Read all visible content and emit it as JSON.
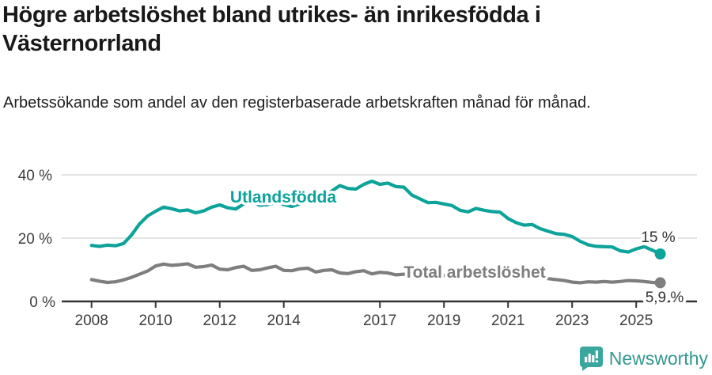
{
  "header": {
    "title": "Högre arbetslöshet bland utrikes- än inrikesfödda i Västernorrland",
    "subtitle": "Arbetssökande som andel av den registerbaserade arbetskraften månad för månad."
  },
  "chart_data": {
    "type": "line",
    "title": "Högre arbetslöshet bland utrikes- än inrikesfödda i Västernorrland",
    "subtitle": "Arbetssökande som andel av den registerbaserade arbetskraften månad för månad.",
    "x_start": 2008,
    "x_step": 0.25,
    "xlim": [
      2008,
      2026
    ],
    "ylim": [
      0,
      43
    ],
    "grid": "horizontal-y",
    "legend_position": "inline-labels",
    "xticks": [
      2008,
      2010,
      2012,
      2014,
      2017,
      2019,
      2021,
      2023,
      2025
    ],
    "xtick_labels": [
      "2008",
      "2010",
      "2012",
      "2014",
      "2017",
      "2019",
      "2021",
      "2023",
      "2025"
    ],
    "ytick_labels": [
      "40 %",
      "20 %",
      "0 %"
    ],
    "yticks": [
      40,
      20,
      0
    ],
    "series": [
      {
        "name": "Utlandsfödda",
        "color": "#0ba39a",
        "end_label": "15 %",
        "end_value": 15,
        "values": [
          17.7,
          17.4,
          17.8,
          17.6,
          18.3,
          21.0,
          24.5,
          27.0,
          28.5,
          29.8,
          29.3,
          28.6,
          28.9,
          28.0,
          28.6,
          29.8,
          30.5,
          29.6,
          29.2,
          30.8,
          31.5,
          30.4,
          30.6,
          31.2,
          30.6,
          30.0,
          30.8,
          31.5,
          32.0,
          33.0,
          34.9,
          36.6,
          35.7,
          35.5,
          37.0,
          38.0,
          37.0,
          37.4,
          36.3,
          36.1,
          33.6,
          32.4,
          31.2,
          31.3,
          30.8,
          30.3,
          28.8,
          28.3,
          29.4,
          28.8,
          28.4,
          28.2,
          26.2,
          24.9,
          24.1,
          24.3,
          23.0,
          22.2,
          21.4,
          21.2,
          20.5,
          19.0,
          17.9,
          17.4,
          17.3,
          17.2,
          16.0,
          15.6,
          16.6,
          17.3,
          16.2,
          15.0
        ]
      },
      {
        "name": "Total arbetslöshet",
        "color": "#7e7e7e",
        "end_label": "5,9 %",
        "end_value": 5.9,
        "values": [
          6.9,
          6.4,
          6.0,
          6.2,
          6.8,
          7.6,
          8.6,
          9.6,
          11.2,
          11.8,
          11.4,
          11.6,
          11.9,
          10.8,
          11.0,
          11.5,
          10.2,
          10.0,
          10.7,
          11.1,
          9.8,
          10.0,
          10.6,
          11.1,
          9.8,
          9.7,
          10.3,
          10.5,
          9.3,
          9.8,
          10.0,
          9.0,
          8.8,
          9.4,
          9.7,
          8.7,
          9.2,
          9.0,
          8.4,
          8.6,
          8.3,
          8.0,
          8.2,
          8.5,
          8.2,
          8.0,
          8.3,
          8.6,
          9.0,
          9.8,
          9.6,
          9.3,
          9.0,
          8.6,
          8.2,
          8.0,
          7.6,
          7.2,
          6.9,
          6.6,
          6.1,
          5.9,
          6.2,
          6.1,
          6.3,
          6.1,
          6.3,
          6.6,
          6.5,
          6.3,
          6.0,
          5.9
        ]
      }
    ]
  },
  "colors": {
    "accent_teal": "#0ba39a",
    "line_gray": "#7e7e7e",
    "gridline": "#dadada",
    "axis": "#333333",
    "brand_teal": "#33988f"
  },
  "footer": {
    "brand": "Newsworthy"
  }
}
